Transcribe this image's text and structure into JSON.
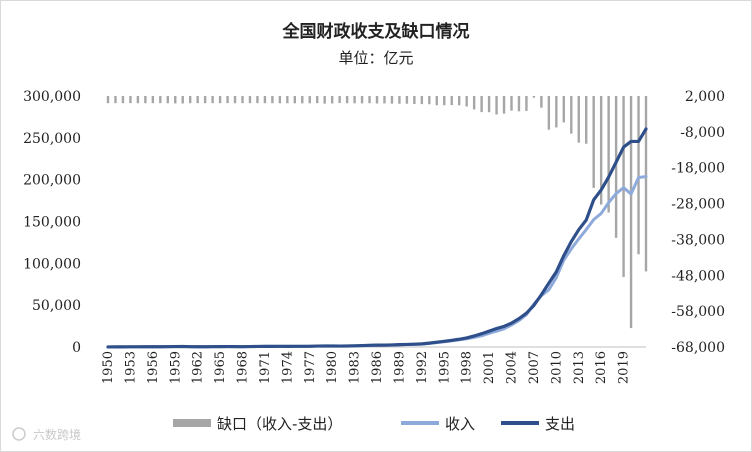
{
  "chart_data": {
    "type": "line",
    "title": "全国财政收支及缺口情况",
    "subtitle": "单位：亿元",
    "x": [
      1950,
      1951,
      1952,
      1953,
      1954,
      1955,
      1956,
      1957,
      1958,
      1959,
      1960,
      1961,
      1962,
      1963,
      1964,
      1965,
      1966,
      1967,
      1968,
      1969,
      1970,
      1971,
      1972,
      1973,
      1974,
      1975,
      1976,
      1977,
      1978,
      1979,
      1980,
      1981,
      1982,
      1983,
      1984,
      1985,
      1986,
      1987,
      1988,
      1989,
      1990,
      1991,
      1992,
      1993,
      1994,
      1995,
      1996,
      1997,
      1998,
      1999,
      2000,
      2001,
      2002,
      2003,
      2004,
      2005,
      2006,
      2007,
      2008,
      2009,
      2010,
      2011,
      2012,
      2013,
      2014,
      2015,
      2016,
      2017,
      2018,
      2019,
      2020,
      2021,
      2022
    ],
    "x_tick_labels": [
      "1950",
      "1953",
      "1956",
      "1959",
      "1962",
      "1965",
      "1968",
      "1971",
      "1974",
      "1977",
      "1980",
      "1983",
      "1986",
      "1989",
      "1992",
      "1995",
      "1998",
      "2001",
      "2004",
      "2007",
      "2010",
      "2013",
      "2016",
      "2019"
    ],
    "y_left_ticks": [
      "300,000",
      "250,000",
      "200,000",
      "150,000",
      "100,000",
      "50,000",
      "0"
    ],
    "y_right_ticks": [
      "2,000",
      "-8,000",
      "-18,000",
      "-28,000",
      "-38,000",
      "-48,000",
      "-58,000",
      "-68,000"
    ],
    "ylim_left": [
      0,
      300000
    ],
    "ylim_right": [
      -68000,
      2000
    ],
    "series": [
      {
        "name": "缺口（收入-支出）",
        "axis": "right",
        "style": "bar",
        "color": "#a6a6a6",
        "values": [
          -2.87,
          10.6,
          8.4,
          -1.3,
          -9.7,
          -10.7,
          -5.2,
          7.5,
          -21.7,
          -65.8,
          -81.8,
          -10.4,
          8.4,
          2.4,
          5.0,
          7.1,
          17.4,
          -22.4,
          -1.0,
          -2.5,
          13.5,
          -10.1,
          -4.3,
          -8.5,
          -20.1,
          -29.8,
          -46.8,
          -31.1,
          10.2,
          -135.4,
          -68.9,
          37.4,
          -17.7,
          -42.6,
          -58.2,
          0.6,
          -82.9,
          -62.8,
          -133.9,
          -158.9,
          -146.5,
          -237.1,
          -258.8,
          -293.4,
          -574.5,
          -581.5,
          -529.6,
          -582.4,
          -922.2,
          -1743.6,
          -2491.3,
          -2516.5,
          -3149.5,
          -2934.7,
          -2090.4,
          -2280.0,
          -2162.5,
          1540.4,
          -1262.3,
          -7397.3,
          -6772.7,
          -5373.4,
          -8502.5,
          -11002.5,
          -11312.6,
          -23609.1,
          -28289.4,
          -30492.5,
          -37554.4,
          -48483.6,
          -62720.4,
          -42138.6,
          -46920.0
        ]
      },
      {
        "name": "收入",
        "axis": "left",
        "style": "line",
        "color": "#8eaadb",
        "values": [
          62,
          125,
          184,
          222,
          262,
          272,
          287,
          310,
          388,
          487,
          572,
          356,
          314,
          342,
          400,
          473,
          558,
          419,
          361,
          526,
          663,
          744,
          767,
          809,
          783,
          816,
          776,
          874,
          1132,
          1146,
          1160,
          1176,
          1212,
          1367,
          1643,
          2005,
          2122,
          2199,
          2357,
          2665,
          2937,
          3149,
          3483,
          4349,
          5218,
          6242,
          7408,
          8651,
          9876,
          11444,
          13395,
          16386,
          18904,
          21715,
          26396,
          31649,
          38760,
          51322,
          61330,
          68518,
          83102,
          103874,
          117254,
          129210,
          140370,
          152269,
          159605,
          172593,
          183360,
          190390,
          182914,
          202555,
          203703
        ]
      },
      {
        "name": "支出",
        "axis": "left",
        "style": "line",
        "color": "#2f4f8a",
        "values": [
          68,
          122,
          176,
          220,
          244,
          262,
          298,
          296,
          400,
          553,
          654,
          367,
          305,
          340,
          394,
          460,
          537,
          440,
          357,
          526,
          649,
          732,
          766,
          809,
          791,
          821,
          806,
          844,
          1122,
          1282,
          1229,
          1138,
          1230,
          1410,
          1701,
          2004,
          2205,
          2262,
          2491,
          2824,
          3084,
          3387,
          3742,
          4642,
          5793,
          6824,
          7938,
          9234,
          10798,
          13188,
          15887,
          18903,
          22053,
          24650,
          28487,
          33930,
          40423,
          49781,
          62593,
          76300,
          89874,
          109248,
          125953,
          140212,
          151786,
          175878,
          187755,
          203085,
          220904,
          238858,
          245679,
          245673,
          260609
        ]
      }
    ],
    "legend": {
      "placement": "bottom"
    },
    "watermark": "六数跨境"
  }
}
